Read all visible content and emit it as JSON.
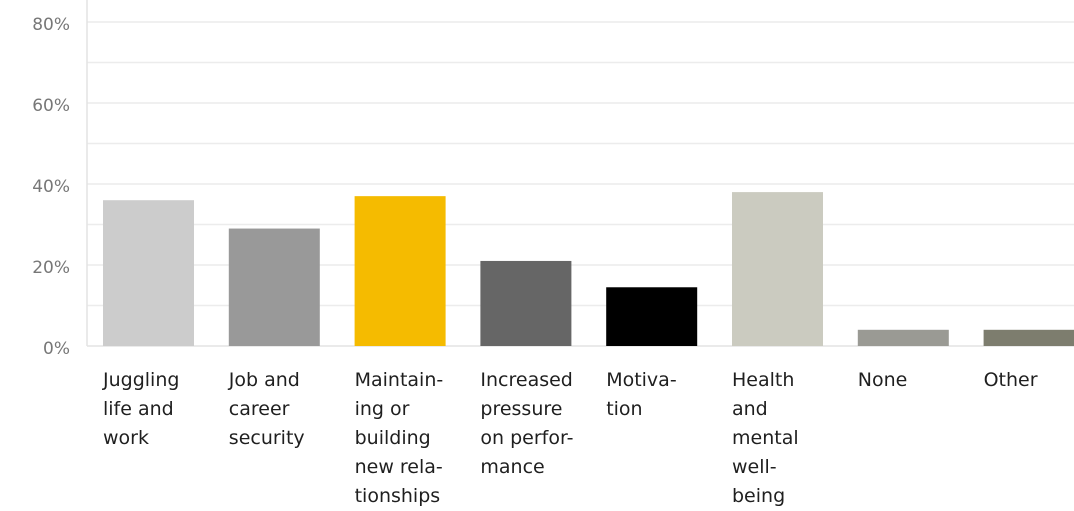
{
  "chart_data": {
    "type": "bar",
    "ylim": [
      0,
      80
    ],
    "yticks": [
      "0%",
      "20%",
      "40%",
      "60%",
      "80%"
    ],
    "grid": true,
    "categories": [
      [
        "Juggling",
        "life and",
        "work"
      ],
      [
        "Job and",
        "career",
        "security"
      ],
      [
        "Maintain-",
        "ing or",
        "building",
        "new rela-",
        "tionships"
      ],
      [
        "Increased",
        "pressure",
        "on perfor-",
        "mance"
      ],
      [
        "Motiva-",
        "tion"
      ],
      [
        "Health",
        "and",
        "mental",
        "well-",
        "being"
      ],
      [
        "None"
      ],
      [
        "Other"
      ]
    ],
    "values": [
      36,
      29,
      37,
      21,
      14.5,
      38,
      4,
      4
    ],
    "colors": [
      "#cccccc",
      "#999999",
      "#f5bb00",
      "#666666",
      "#000000",
      "#cbcbc0",
      "#9a9a94",
      "#7d7d6e"
    ]
  }
}
